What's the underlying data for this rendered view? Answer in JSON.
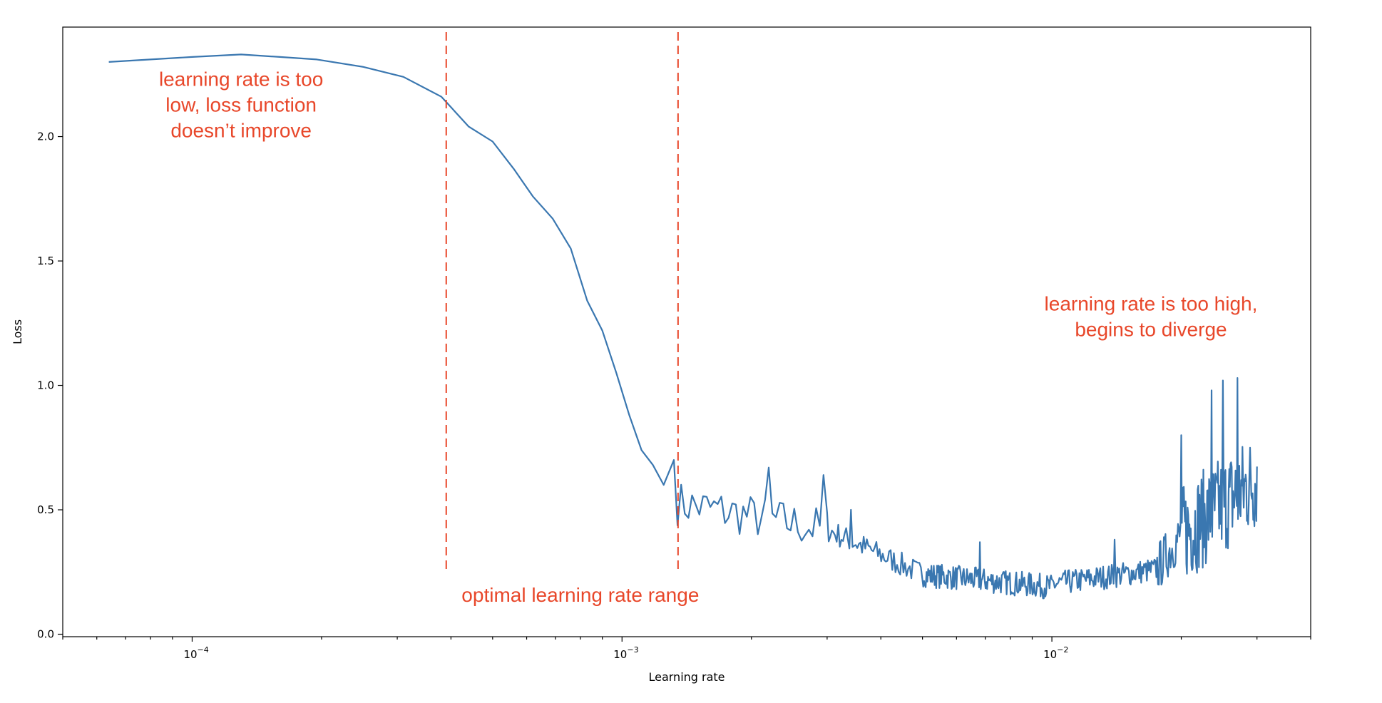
{
  "chart_data": {
    "type": "line",
    "xlabel": "Learning rate",
    "ylabel": "Loss",
    "x_scale": "log",
    "xlim": [
      5e-05,
      0.04
    ],
    "ylim": [
      -0.01,
      2.44
    ],
    "grid": false,
    "x_ticks": [
      {
        "value": 0.0001,
        "base": "10",
        "exp": "−4"
      },
      {
        "value": 0.001,
        "base": "10",
        "exp": "−3"
      },
      {
        "value": 0.01,
        "base": "10",
        "exp": "−2"
      }
    ],
    "y_ticks": [
      {
        "value": 0.0,
        "label": "0.0"
      },
      {
        "value": 0.5,
        "label": "0.5"
      },
      {
        "value": 1.0,
        "label": "1.0"
      },
      {
        "value": 1.5,
        "label": "1.5"
      },
      {
        "value": 2.0,
        "label": "2.0"
      }
    ],
    "series_color": "#3a77b0",
    "line_color": "#e8472a",
    "series": [
      {
        "x": [
          6.4e-05,
          8e-05,
          0.0001,
          0.00013,
          0.00016,
          0.000195,
          0.00025,
          0.00031,
          0.00038,
          0.00044,
          0.0005,
          0.00056,
          0.00062,
          0.00069,
          0.00076,
          0.00083,
          0.0009,
          0.00097,
          0.00104,
          0.00111,
          0.00118,
          0.00125,
          0.00132
        ],
        "y": [
          2.3,
          2.31,
          2.32,
          2.33,
          2.32,
          2.31,
          2.28,
          2.24,
          2.16,
          2.04,
          1.98,
          1.87,
          1.76,
          1.67,
          1.55,
          1.34,
          1.22,
          1.05,
          0.88,
          0.74,
          0.68,
          0.6,
          0.7
        ],
        "noise_segments": [
          {
            "x_from": 0.00132,
            "x_to": 0.003,
            "n": 42,
            "y_start": 0.53,
            "y_end": 0.42,
            "amplitude": 0.09
          },
          {
            "x_from": 0.003,
            "x_to": 0.005,
            "n": 60,
            "y_start": 0.42,
            "y_end": 0.24,
            "amplitude": 0.05
          },
          {
            "x_from": 0.005,
            "x_to": 0.01,
            "n": 160,
            "y_start": 0.24,
            "y_end": 0.19,
            "amplitude": 0.05
          },
          {
            "x_from": 0.01,
            "x_to": 0.0175,
            "n": 110,
            "y_start": 0.2,
            "y_end": 0.26,
            "amplitude": 0.05
          },
          {
            "x_from": 0.0175,
            "x_to": 0.02,
            "n": 30,
            "y_start": 0.26,
            "y_end": 0.4,
            "amplitude": 0.1
          },
          {
            "x_from": 0.02,
            "x_to": 0.03,
            "n": 120,
            "y_start": 0.4,
            "y_end": 0.62,
            "amplitude": 0.2
          }
        ],
        "peaks": [
          {
            "x": 0.0022,
            "y": 0.67
          },
          {
            "x": 0.00295,
            "y": 0.64
          },
          {
            "x": 0.0034,
            "y": 0.5
          },
          {
            "x": 0.0068,
            "y": 0.37
          },
          {
            "x": 0.014,
            "y": 0.38
          },
          {
            "x": 0.02,
            "y": 0.8
          },
          {
            "x": 0.027,
            "y": 1.03
          },
          {
            "x": 0.025,
            "y": 1.02
          },
          {
            "x": 0.0235,
            "y": 0.98
          }
        ]
      }
    ],
    "vlines": [
      {
        "x": 0.00039,
        "y_from": 0.25,
        "y_to": 2.42
      },
      {
        "x": 0.00135,
        "y_from": 0.25,
        "y_to": 2.42
      }
    ],
    "annotations": [
      {
        "lines": [
          "learning rate is too",
          "low, loss function",
          "doesn’t improve"
        ],
        "x": 0.00013,
        "y": 2.1
      },
      {
        "lines": [
          "optimal learning rate range"
        ],
        "x": 0.0008,
        "y": 0.13
      },
      {
        "lines": [
          "learning rate is too high,",
          "begins to diverge"
        ],
        "x": 0.017,
        "y": 1.25
      }
    ]
  }
}
